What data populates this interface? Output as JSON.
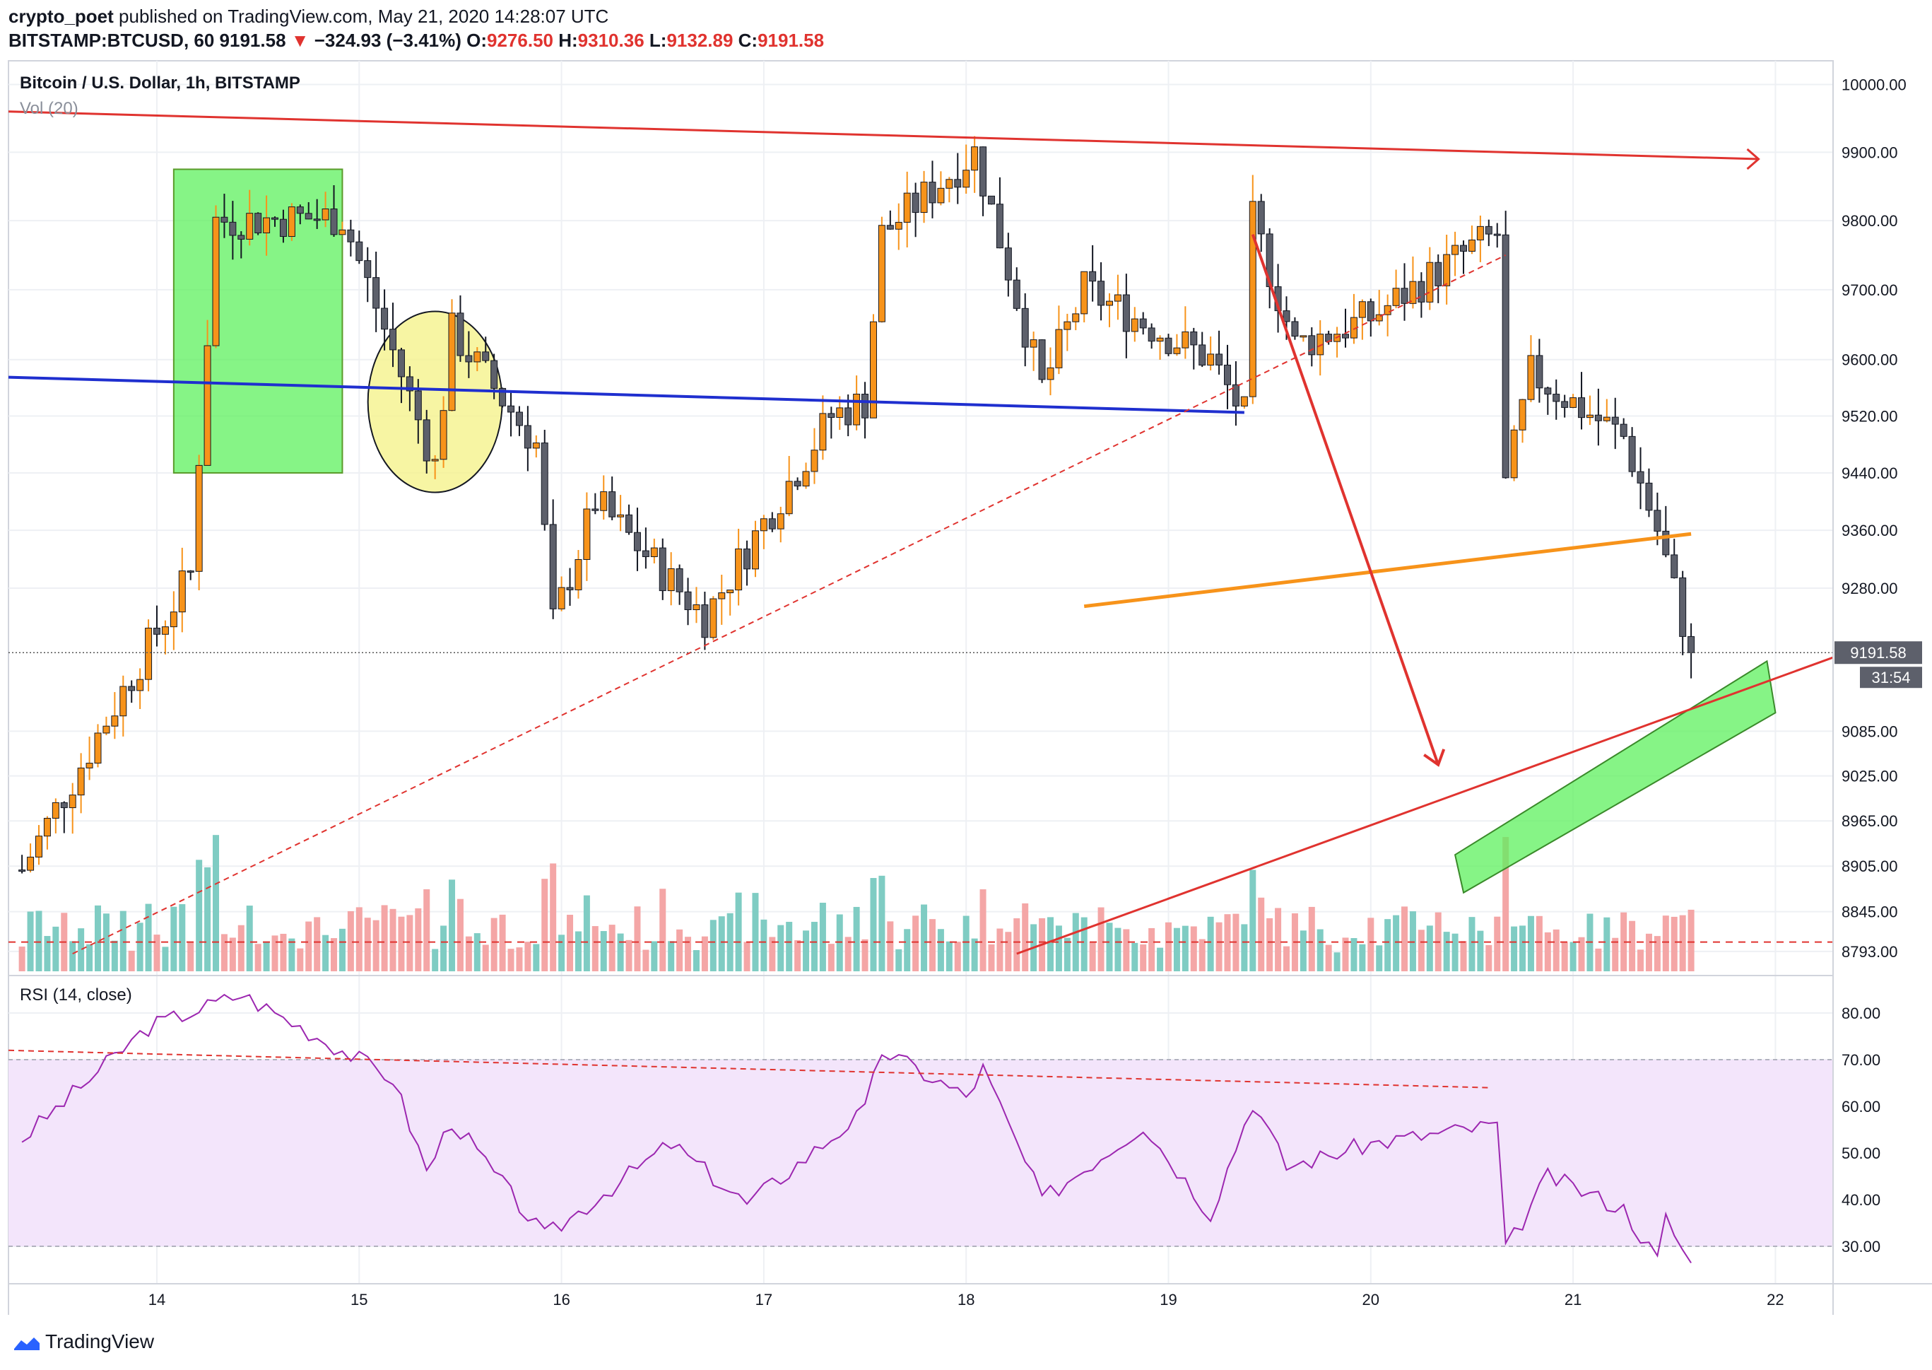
{
  "header": {
    "author": "crypto_poet",
    "published_text": "published on TradingView.com, May 21, 2020 14:28:07 UTC",
    "symbol": "BITSTAMP:BTCUSD, 60",
    "last": "9191.58",
    "change": "−324.93 (−3.41%)",
    "open_label": "O:",
    "open": "9276.50",
    "high_label": "H:",
    "high": "9310.36",
    "low_label": "L:",
    "low": "9132.89",
    "close_label": "C:",
    "close": "9191.58"
  },
  "panel": {
    "title": "Bitcoin / U.S. Dollar, 1h, BITSTAMP",
    "volume_label": "Vol (20)",
    "rsi_label": "RSI (14, close)",
    "price_tag": "9191.58",
    "countdown_tag": "31:54"
  },
  "footer": {
    "brand": "TradingView"
  },
  "colors": {
    "up": "#f7931a",
    "down": "#5d606b",
    "vol_up": "#7fccc3",
    "vol_down": "#f4a6a6",
    "resistance": "#e0332f",
    "support_blue": "#1f2fcf",
    "orange_line": "#f7931a",
    "green_zone": "#5ef05e",
    "yellow_circle": "#f5f38c",
    "rsi_line": "#9c27b0",
    "rsi_band": "#f3e5fb"
  },
  "chart_data": [
    {
      "type": "candlestick",
      "title": "Bitcoin / U.S. Dollar, 1h, BITSTAMP",
      "x_tick_labels": [
        "14",
        "15",
        "16",
        "17",
        "18",
        "19",
        "20",
        "21",
        "22"
      ],
      "y_tick_labels": [
        "10000.00",
        "9900.00",
        "9800.00",
        "9700.00",
        "9600.00",
        "9520.00",
        "9440.00",
        "9360.00",
        "9280.00",
        "9085.00",
        "9025.00",
        "8965.00",
        "8905.00",
        "8845.00",
        "8793.00"
      ],
      "y_scale": "log",
      "ylim": [
        8780,
        10010
      ],
      "last_price": 9191.58,
      "ohlc_key_points": [
        {
          "t": "May 13 08:00",
          "price": 8900
        },
        {
          "t": "May 14 04:00",
          "price": 9300
        },
        {
          "t": "May 14 07:00",
          "price": 9800
        },
        {
          "t": "May 14 22:00",
          "price": 9805
        },
        {
          "t": "May 15 09:00",
          "price": 9450
        },
        {
          "t": "May 15 11:00",
          "price": 9640
        },
        {
          "t": "May 15 21:00",
          "price": 9480
        },
        {
          "t": "May 15 23:00",
          "price": 9230
        },
        {
          "t": "May 16 04:00",
          "price": 9400
        },
        {
          "t": "May 16 17:00",
          "price": 9240
        },
        {
          "t": "May 17 08:00",
          "price": 9520
        },
        {
          "t": "May 17 12:00",
          "price": 9540
        },
        {
          "t": "May 17 14:00",
          "price": 9780
        },
        {
          "t": "May 18 01:00",
          "price": 9900
        },
        {
          "t": "May 18 09:00",
          "price": 9560
        },
        {
          "t": "May 18 14:00",
          "price": 9700
        },
        {
          "t": "May 19 05:00",
          "price": 9600
        },
        {
          "t": "May 19 09:00",
          "price": 9520
        },
        {
          "t": "May 19 10:00",
          "price": 9800
        },
        {
          "t": "May 19 15:00",
          "price": 9620
        },
        {
          "t": "May 20 00:00",
          "price": 9660
        },
        {
          "t": "May 20 12:00",
          "price": 9760
        },
        {
          "t": "May 20 15:00",
          "price": 9780
        },
        {
          "t": "May 20 16:00",
          "price": 9420
        },
        {
          "t": "May 20 19:00",
          "price": 9580
        },
        {
          "t": "May 21 06:00",
          "price": 9490
        },
        {
          "t": "May 21 10:00",
          "price": 9360
        },
        {
          "t": "May 21 14:00",
          "price": 9191.58
        }
      ],
      "volume_axis_reference": 8820
    },
    {
      "type": "line",
      "title": "RSI (14, close)",
      "y_tick_labels": [
        "80.00",
        "70.00",
        "60.00",
        "50.00",
        "40.00",
        "30.00"
      ],
      "ylim": [
        25,
        85
      ],
      "bands": [
        30,
        70
      ],
      "key_points": [
        {
          "t": "May 13 08:00",
          "value": 53
        },
        {
          "t": "May 13 23:00",
          "value": 77
        },
        {
          "t": "May 14 10:00",
          "value": 84
        },
        {
          "t": "May 15 04:00",
          "value": 66
        },
        {
          "t": "May 15 08:00",
          "value": 46
        },
        {
          "t": "May 15 11:00",
          "value": 57
        },
        {
          "t": "May 15 22:00",
          "value": 32
        },
        {
          "t": "May 16 13:00",
          "value": 52
        },
        {
          "t": "May 16 22:00",
          "value": 39
        },
        {
          "t": "May 17 12:00",
          "value": 59
        },
        {
          "t": "May 17 14:00",
          "value": 72
        },
        {
          "t": "May 18 00:00",
          "value": 62
        },
        {
          "t": "May 18 02:00",
          "value": 68
        },
        {
          "t": "May 18 09:00",
          "value": 40
        },
        {
          "t": "May 18 21:00",
          "value": 56
        },
        {
          "t": "May 19 05:00",
          "value": 37
        },
        {
          "t": "May 19 10:00",
          "value": 61
        },
        {
          "t": "May 19 14:00",
          "value": 47
        },
        {
          "t": "May 20 00:00",
          "value": 52
        },
        {
          "t": "May 20 15:00",
          "value": 56
        },
        {
          "t": "May 20 16:00",
          "value": 29
        },
        {
          "t": "May 20 21:00",
          "value": 45
        },
        {
          "t": "May 21 06:00",
          "value": 38
        },
        {
          "t": "May 21 10:00",
          "value": 27
        },
        {
          "t": "May 21 11:00",
          "value": 36
        },
        {
          "t": "May 21 14:00",
          "value": 26
        }
      ]
    }
  ]
}
